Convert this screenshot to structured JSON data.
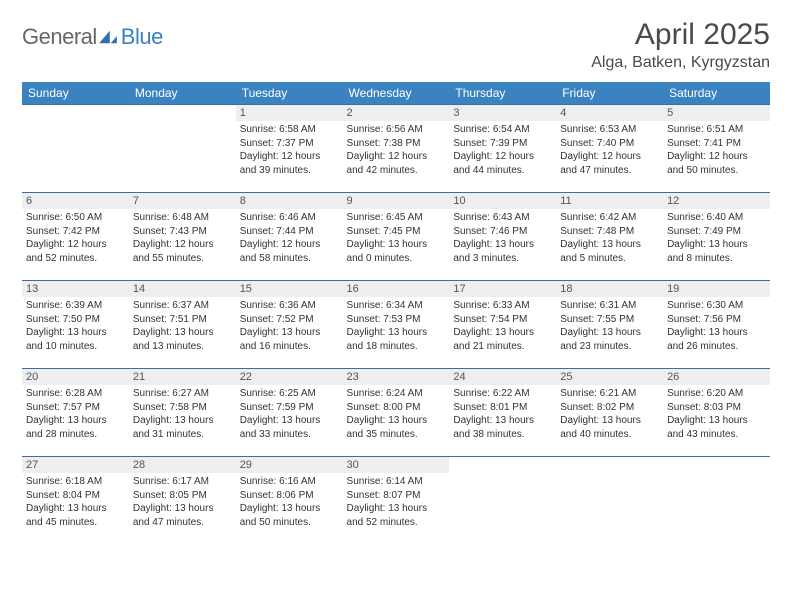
{
  "logo": {
    "text1": "General",
    "text2": "Blue"
  },
  "title": "April 2025",
  "location": "Alga, Batken, Kyrgyzstan",
  "colors": {
    "header_bg": "#3b83c0",
    "header_text": "#ffffff",
    "border": "#3b6fa0",
    "daynum_bg": "#eceef0",
    "logo_gray": "#676767",
    "logo_blue": "#3b7fc4"
  },
  "table": {
    "columns": [
      "Sunday",
      "Monday",
      "Tuesday",
      "Wednesday",
      "Thursday",
      "Friday",
      "Saturday"
    ],
    "col_width_pct": 14.28
  },
  "weeks": [
    [
      null,
      null,
      {
        "n": "1",
        "sr": "6:58 AM",
        "ss": "7:37 PM",
        "dl": "12 hours and 39 minutes."
      },
      {
        "n": "2",
        "sr": "6:56 AM",
        "ss": "7:38 PM",
        "dl": "12 hours and 42 minutes."
      },
      {
        "n": "3",
        "sr": "6:54 AM",
        "ss": "7:39 PM",
        "dl": "12 hours and 44 minutes."
      },
      {
        "n": "4",
        "sr": "6:53 AM",
        "ss": "7:40 PM",
        "dl": "12 hours and 47 minutes."
      },
      {
        "n": "5",
        "sr": "6:51 AM",
        "ss": "7:41 PM",
        "dl": "12 hours and 50 minutes."
      }
    ],
    [
      {
        "n": "6",
        "sr": "6:50 AM",
        "ss": "7:42 PM",
        "dl": "12 hours and 52 minutes."
      },
      {
        "n": "7",
        "sr": "6:48 AM",
        "ss": "7:43 PM",
        "dl": "12 hours and 55 minutes."
      },
      {
        "n": "8",
        "sr": "6:46 AM",
        "ss": "7:44 PM",
        "dl": "12 hours and 58 minutes."
      },
      {
        "n": "9",
        "sr": "6:45 AM",
        "ss": "7:45 PM",
        "dl": "13 hours and 0 minutes."
      },
      {
        "n": "10",
        "sr": "6:43 AM",
        "ss": "7:46 PM",
        "dl": "13 hours and 3 minutes."
      },
      {
        "n": "11",
        "sr": "6:42 AM",
        "ss": "7:48 PM",
        "dl": "13 hours and 5 minutes."
      },
      {
        "n": "12",
        "sr": "6:40 AM",
        "ss": "7:49 PM",
        "dl": "13 hours and 8 minutes."
      }
    ],
    [
      {
        "n": "13",
        "sr": "6:39 AM",
        "ss": "7:50 PM",
        "dl": "13 hours and 10 minutes."
      },
      {
        "n": "14",
        "sr": "6:37 AM",
        "ss": "7:51 PM",
        "dl": "13 hours and 13 minutes."
      },
      {
        "n": "15",
        "sr": "6:36 AM",
        "ss": "7:52 PM",
        "dl": "13 hours and 16 minutes."
      },
      {
        "n": "16",
        "sr": "6:34 AM",
        "ss": "7:53 PM",
        "dl": "13 hours and 18 minutes."
      },
      {
        "n": "17",
        "sr": "6:33 AM",
        "ss": "7:54 PM",
        "dl": "13 hours and 21 minutes."
      },
      {
        "n": "18",
        "sr": "6:31 AM",
        "ss": "7:55 PM",
        "dl": "13 hours and 23 minutes."
      },
      {
        "n": "19",
        "sr": "6:30 AM",
        "ss": "7:56 PM",
        "dl": "13 hours and 26 minutes."
      }
    ],
    [
      {
        "n": "20",
        "sr": "6:28 AM",
        "ss": "7:57 PM",
        "dl": "13 hours and 28 minutes."
      },
      {
        "n": "21",
        "sr": "6:27 AM",
        "ss": "7:58 PM",
        "dl": "13 hours and 31 minutes."
      },
      {
        "n": "22",
        "sr": "6:25 AM",
        "ss": "7:59 PM",
        "dl": "13 hours and 33 minutes."
      },
      {
        "n": "23",
        "sr": "6:24 AM",
        "ss": "8:00 PM",
        "dl": "13 hours and 35 minutes."
      },
      {
        "n": "24",
        "sr": "6:22 AM",
        "ss": "8:01 PM",
        "dl": "13 hours and 38 minutes."
      },
      {
        "n": "25",
        "sr": "6:21 AM",
        "ss": "8:02 PM",
        "dl": "13 hours and 40 minutes."
      },
      {
        "n": "26",
        "sr": "6:20 AM",
        "ss": "8:03 PM",
        "dl": "13 hours and 43 minutes."
      }
    ],
    [
      {
        "n": "27",
        "sr": "6:18 AM",
        "ss": "8:04 PM",
        "dl": "13 hours and 45 minutes."
      },
      {
        "n": "28",
        "sr": "6:17 AM",
        "ss": "8:05 PM",
        "dl": "13 hours and 47 minutes."
      },
      {
        "n": "29",
        "sr": "6:16 AM",
        "ss": "8:06 PM",
        "dl": "13 hours and 50 minutes."
      },
      {
        "n": "30",
        "sr": "6:14 AM",
        "ss": "8:07 PM",
        "dl": "13 hours and 52 minutes."
      },
      null,
      null,
      null
    ]
  ],
  "labels": {
    "sunrise": "Sunrise: ",
    "sunset": "Sunset: ",
    "daylight": "Daylight: "
  }
}
